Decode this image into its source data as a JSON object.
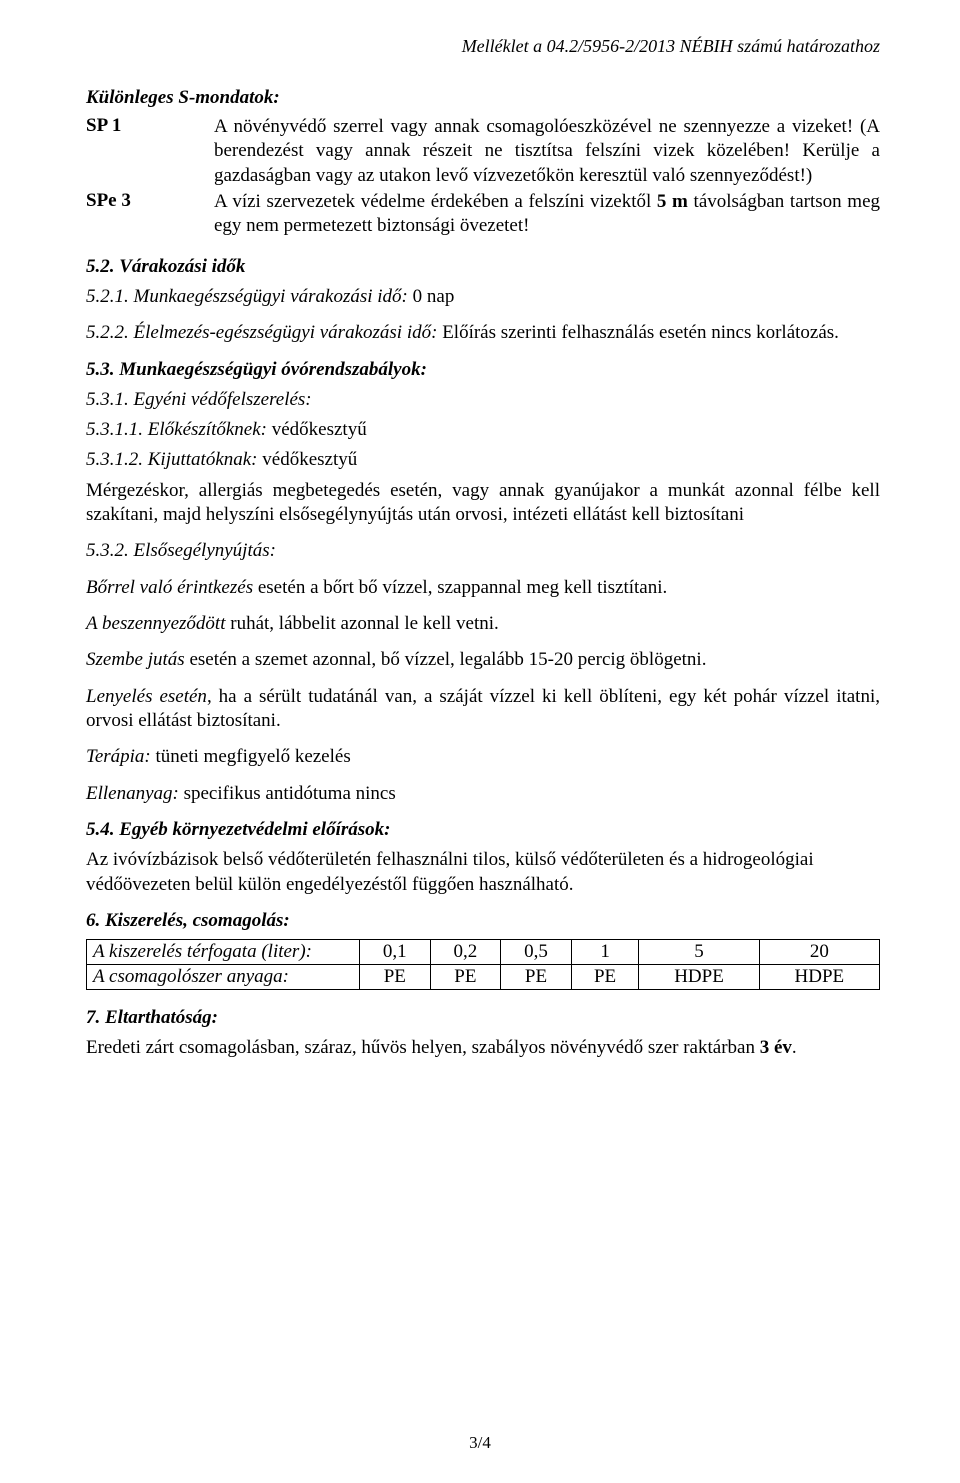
{
  "header_reference": "Melléklet a 04.2/5956-2/2013 NÉBIH számú határozathoz",
  "s_sentences": {
    "title": "Különleges S-mondatok:",
    "items": [
      {
        "code": "SP 1",
        "text": "A növényvédő szerrel vagy annak csomagolóeszközével ne szennyezze a vizeket! (A berendezést vagy annak részeit ne tisztítsa felszíni vizek közelében! Kerülje a gazdaságban vagy az utakon levő vízvezetőkön keresztül való szennyeződést!)"
      },
      {
        "code": "SPe 3",
        "text_prefix": "A vízi szervezetek védelme érdekében a felszíni vizektől ",
        "text_bold": "5 m",
        "text_suffix": " távolságban tartson meg egy nem permetezett biztonsági övezetet!"
      }
    ]
  },
  "waiting_times": {
    "heading": "5.2. Várakozási idők",
    "item1_label": "5.2.1. Munkaegészségügyi várakozási idő:",
    "item1_value": " 0 nap",
    "item2_label": "5.2.2. Élelmezés-egészségügyi várakozási idő:",
    "item2_value": " Előírás szerinti felhasználás esetén nincs korlátozás."
  },
  "occupational": {
    "heading": "5.3. Munkaegészségügyi óvórendszabályok:",
    "ppe_heading": "5.3.1. Egyéni védőfelszerelés:",
    "prep_label": "5.3.1.1. Előkészítőknek:",
    "prep_value": " védőkesztyű",
    "apply_label": "5.3.1.2. Kijuttatóknak:",
    "apply_value": " védőkesztyű",
    "poison_text": "Mérgezéskor, allergiás megbetegedés esetén, vagy annak gyanújakor a munkát azonnal félbe kell szakítani, majd helyszíni elsősegélynyújtás után orvosi, intézeti ellátást kell biztosítani",
    "first_aid_heading": "5.3.2. Elsősegélynyújtás:",
    "skin_label": "Bőrrel való érintkezés",
    "skin_text": " esetén a bőrt bő vízzel, szappannal meg kell tisztítani.",
    "clothes_label": "A beszennyeződött",
    "clothes_text": " ruhát, lábbelit azonnal le kell vetni.",
    "eye_label": "Szembe jutás",
    "eye_text": " esetén a szemet azonnal, bő vízzel, legalább 15-20 percig öblögetni.",
    "swallow_label": "Lenyelés esetén",
    "swallow_text": ", ha a sérült tudatánál van, a száját vízzel ki kell öblíteni, egy két pohár vízzel itatni, orvosi ellátást biztosítani.",
    "therapy_label": "Terápia:",
    "therapy_text": " tüneti megfigyelő kezelés",
    "antidote_label": "Ellenanyag:",
    "antidote_text": " specifikus antidótuma nincs"
  },
  "environmental": {
    "heading": "5.4. Egyéb környezetvédelmi előírások:",
    "text": "Az ivóvízbázisok belső védőterületén felhasználni tilos, külső védőterületen és a hidrogeológiai védőövezeten belül külön engedélyezéstől függően használható."
  },
  "packaging": {
    "heading": "6. Kiszerelés, csomagolás:",
    "row1_label": "A kiszerelés térfogata (liter):",
    "row2_label": "A csomagolószer anyaga:",
    "volumes": [
      "0,1",
      "0,2",
      "0,5",
      "1",
      "5",
      "20"
    ],
    "materials": [
      "PE",
      "PE",
      "PE",
      "PE",
      "HDPE",
      "HDPE"
    ]
  },
  "shelf_life": {
    "heading": "7. Eltarthatóság:",
    "text_prefix": "Eredeti zárt csomagolásban, száraz, hűvös helyen, szabályos növényvédő szer raktárban ",
    "text_bold": "3 év",
    "text_suffix": "."
  },
  "page_number": "3/4"
}
